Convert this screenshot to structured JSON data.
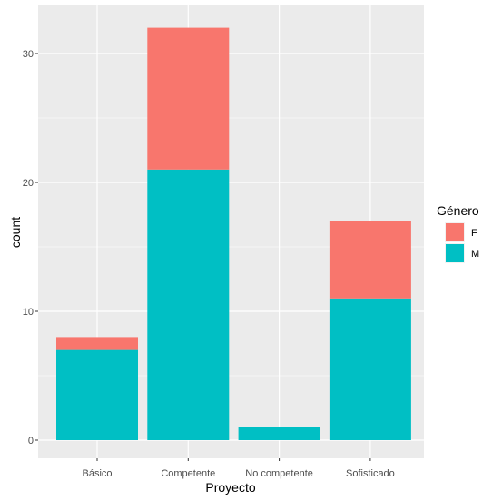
{
  "chart_data": {
    "type": "bar",
    "stacked": true,
    "categories": [
      "Básico",
      "Competente",
      "No competente",
      "Sofisticado"
    ],
    "series": [
      {
        "name": "F",
        "color": "#F8766D",
        "values": [
          1,
          11,
          0,
          6
        ]
      },
      {
        "name": "M",
        "color": "#00BFC4",
        "values": [
          7,
          21,
          1,
          11
        ]
      }
    ],
    "xlabel": "Proyecto",
    "ylabel": "count",
    "ylim": [
      0,
      33.6
    ],
    "yticks": [
      0,
      10,
      20,
      30
    ],
    "grid": true,
    "legend": {
      "title": "Género",
      "position": "right"
    },
    "colors": {
      "panel": "#EBEBEB",
      "grid": "#FFFFFF"
    }
  }
}
